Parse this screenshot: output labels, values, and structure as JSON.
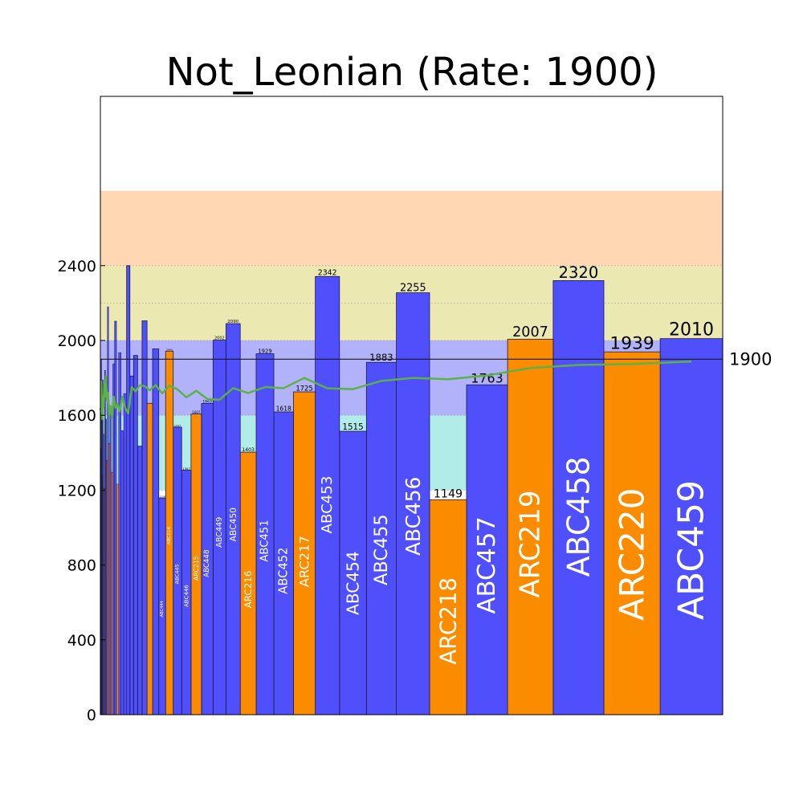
{
  "chart_data": {
    "type": "bar",
    "title": "Not_Leonian (Rate: 1900)",
    "rate": 1900,
    "rate_label": "1900",
    "yticks": [
      0,
      400,
      800,
      1200,
      1600,
      2000,
      2400
    ],
    "ytick_labels": [
      "0",
      "400",
      "800",
      "1200",
      "1600",
      "2000",
      "2400"
    ],
    "bands": [
      {
        "from": 0,
        "to": 1200,
        "color": "#ffffff"
      },
      {
        "from": 1200,
        "to": 1600,
        "color": "#b2ece9"
      },
      {
        "from": 1600,
        "to": 2000,
        "color": "#b2b2fa"
      },
      {
        "from": 2000,
        "to": 2400,
        "color": "#ebe9b1"
      },
      {
        "from": 2400,
        "to": 2800,
        "color": "#ffd7b2"
      }
    ],
    "colors": {
      "ABC": "#4f4ffb",
      "ARC": "#fb8c00",
      "rate_line": "#5cb246",
      "hline": "#1a1a1a"
    },
    "series": [
      {
        "contest": "ABC459",
        "type": "ABC",
        "score": 2010,
        "label": "2010"
      },
      {
        "contest": "ARC220",
        "type": "ARC",
        "score": 1939,
        "label": "1939"
      },
      {
        "contest": "ABC458",
        "type": "ABC",
        "score": 2320,
        "label": "2320"
      },
      {
        "contest": "ARC219",
        "type": "ARC",
        "score": 2007,
        "label": "2007"
      },
      {
        "contest": "ABC457",
        "type": "ABC",
        "score": 1763,
        "label": "1763"
      },
      {
        "contest": "ARC218",
        "type": "ARC",
        "score": 1149,
        "label": "1149"
      },
      {
        "contest": "ABC456",
        "type": "ABC",
        "score": 2255,
        "label": "2255"
      },
      {
        "contest": "ABC455",
        "type": "ABC",
        "score": 1883,
        "label": "1883"
      },
      {
        "contest": "ABC454",
        "type": "ABC",
        "score": 1515,
        "label": "1515"
      },
      {
        "contest": "ABC453",
        "type": "ABC",
        "score": 2342,
        "label": "2342"
      },
      {
        "contest": "ARC217",
        "type": "ARC",
        "score": 1725,
        "label": "1725"
      },
      {
        "contest": "ABC452",
        "type": "ABC",
        "score": 1618,
        "label": "1618"
      },
      {
        "contest": "ABC451",
        "type": "ABC",
        "score": 1929,
        "label": "1929"
      },
      {
        "contest": "ARC216",
        "type": "ARC",
        "score": 1403,
        "label": "1403"
      },
      {
        "contest": "ABC450",
        "type": "ABC",
        "score": 2090,
        "label": "2090"
      },
      {
        "contest": "ABC449",
        "type": "ABC",
        "score": 2002,
        "label": "2002"
      },
      {
        "contest": "ABC448",
        "type": "ABC",
        "score": 1663,
        "label": "1663"
      },
      {
        "contest": "ARC215",
        "type": "ARC",
        "score": 1607,
        "label": "1607"
      },
      {
        "contest": "ABC446",
        "type": "ABC",
        "score": 1307,
        "label": "1307"
      },
      {
        "contest": "ABC445",
        "type": "ABC",
        "score": 1537,
        "label": "1537"
      },
      {
        "contest": "ARC214",
        "type": "ARC",
        "score": 1943,
        "label": "1943"
      },
      {
        "contest": "ABC444",
        "type": "ABC",
        "score": 1158,
        "label": "1158"
      },
      {
        "contest": "",
        "type": "ABC",
        "score": 1955,
        "label": ""
      },
      {
        "contest": "",
        "type": "ARC",
        "score": 1664,
        "label": ""
      },
      {
        "contest": "",
        "type": "ABC",
        "score": 2105,
        "label": ""
      },
      {
        "contest": "",
        "type": "ABC",
        "score": 1435,
        "label": ""
      },
      {
        "contest": "",
        "type": "ABC",
        "score": 1920,
        "label": ""
      },
      {
        "contest": "",
        "type": "ABC",
        "score": 1810,
        "label": ""
      },
      {
        "contest": "",
        "type": "ABC",
        "score": 2400,
        "label": ""
      },
      {
        "contest": "",
        "type": "ABC",
        "score": 1716,
        "label": ""
      },
      {
        "contest": "",
        "type": "ABC",
        "score": 1518,
        "label": ""
      },
      {
        "contest": "",
        "type": "ABC",
        "score": 1935,
        "label": ""
      },
      {
        "contest": "",
        "type": "ARC",
        "score": 1232,
        "label": ""
      },
      {
        "contest": "",
        "type": "ABC",
        "score": 2103,
        "label": ""
      },
      {
        "contest": "",
        "type": "ABC",
        "score": 1875,
        "label": ""
      },
      {
        "contest": "",
        "type": "ARC",
        "score": 1296,
        "label": ""
      },
      {
        "contest": "",
        "type": "ABC",
        "score": 1643,
        "label": ""
      },
      {
        "contest": "",
        "type": "ARC",
        "score": 1450,
        "label": ""
      },
      {
        "contest": "",
        "type": "ABC",
        "score": 2180,
        "label": ""
      },
      {
        "contest": "",
        "type": "ARC",
        "score": 1360,
        "label": ""
      },
      {
        "contest": "",
        "type": "ABC",
        "score": 1580,
        "label": ""
      },
      {
        "contest": "",
        "type": "ABC",
        "score": 1840,
        "label": ""
      },
      {
        "contest": "",
        "type": "ARC",
        "score": 1210,
        "label": ""
      },
      {
        "contest": "",
        "type": "ABC",
        "score": 1500,
        "label": ""
      },
      {
        "contest": "",
        "type": "ABC",
        "score": 1790,
        "label": ""
      },
      {
        "contest": "",
        "type": "ARC",
        "score": 1280,
        "label": ""
      },
      {
        "contest": "",
        "type": "ABC",
        "score": 1680,
        "label": ""
      },
      {
        "contest": "",
        "type": "ABC",
        "score": 1900,
        "label": ""
      },
      {
        "contest": "",
        "type": "ABC",
        "score": 1420,
        "label": ""
      },
      {
        "contest": "",
        "type": "ABC",
        "score": 1620,
        "label": ""
      }
    ],
    "rating_history": [
      1888,
      1874,
      1869,
      1853,
      1813,
      1793,
      1800,
      1784,
      1740,
      1744,
      1800,
      1745,
      1751,
      1719,
      1745,
      1683,
      1688,
      1731,
      1696,
      1739,
      1759,
      1717,
      1762,
      1734,
      1756,
      1761,
      1727,
      1751,
      1610,
      1640,
      1700,
      1620,
      1660,
      1640,
      1700,
      1590,
      1650,
      1600,
      1720,
      1680,
      1810,
      1700,
      1760,
      1640,
      1700,
      1580,
      1660,
      1780,
      1620,
      1640
    ]
  }
}
